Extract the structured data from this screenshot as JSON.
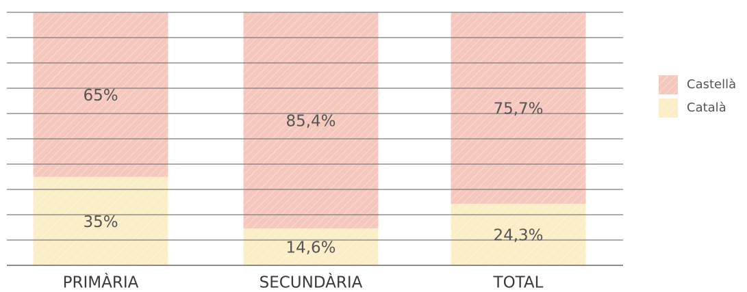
{
  "chart_data": {
    "type": "stacked_bar",
    "categories": [
      "PRIMÀRIA",
      "SECUNDÀRIA",
      "TOTAL"
    ],
    "series": [
      {
        "name": "Català",
        "color": "#fbeec6",
        "values": [
          35,
          14.6,
          24.3
        ],
        "value_labels": [
          "35%",
          "14,6%",
          "24,3%"
        ]
      },
      {
        "name": "Castellà",
        "color": "#f6c7bd",
        "values": [
          65,
          85.4,
          75.7
        ],
        "value_labels": [
          "65%",
          "85,4%",
          "75,7%"
        ]
      }
    ],
    "ylim": [
      0,
      100
    ],
    "yticks": [
      0,
      10,
      20,
      30,
      40,
      50,
      60,
      70,
      80,
      90,
      100
    ],
    "grid": true,
    "legend": "right"
  }
}
